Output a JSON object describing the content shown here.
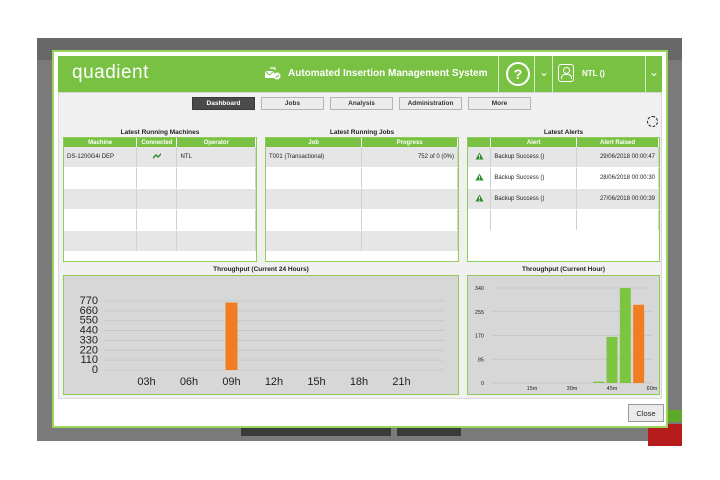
{
  "header": {
    "logo_text": "quadient",
    "system_title": "Automated Insertion Management System",
    "help_label": "?",
    "user_label": "NTL ()"
  },
  "nav": {
    "tabs": [
      {
        "label": "Dashboard",
        "active": true
      },
      {
        "label": "Jobs",
        "active": false
      },
      {
        "label": "Analysis",
        "active": false
      },
      {
        "label": "Administration",
        "active": false
      },
      {
        "label": "More",
        "active": false
      }
    ]
  },
  "machines": {
    "title": "Latest Running Machines",
    "columns": [
      "Machine",
      "Connected",
      "Operator"
    ],
    "rows": [
      {
        "machine": "DS-1200G4i DEP",
        "connected": true,
        "operator": "NTL"
      }
    ]
  },
  "jobs": {
    "title": "Latest Running Jobs",
    "columns": [
      "Job",
      "Progress"
    ],
    "rows": [
      {
        "job": "T001 (Transactional)",
        "progress": "752 of 0 (0%)"
      }
    ]
  },
  "alerts": {
    "title": "Latest Alerts",
    "columns": [
      "Alert",
      "Alert Raised"
    ],
    "rows": [
      {
        "icon": "warning-icon",
        "alert": "Backup Success ()",
        "raised": "29/06/2018 00:00:47"
      },
      {
        "icon": "warning-icon",
        "alert": "Backup Success ()",
        "raised": "28/06/2018 00:00:30"
      },
      {
        "icon": "warning-icon",
        "alert": "Backup Success ()",
        "raised": "27/06/2018 00:00:39"
      }
    ]
  },
  "footer": {
    "close_label": "Close"
  },
  "colors": {
    "brand_green": "#79c142",
    "orange": "#f07d22",
    "bar_green": "#7cc540"
  },
  "chart_data": [
    {
      "type": "bar",
      "title": "Throughput (Current 24 Hours)",
      "categories": [
        "03h",
        "06h",
        "09h",
        "12h",
        "15h",
        "18h",
        "21h"
      ],
      "y_ticks": [
        0,
        110,
        220,
        330,
        440,
        550,
        660,
        770
      ],
      "ylim": [
        0,
        770
      ],
      "series": [
        {
          "color": "#f07d22",
          "points": [
            {
              "x": 9,
              "y": 752
            }
          ]
        }
      ]
    },
    {
      "type": "bar",
      "title": "Throughput (Current Hour)",
      "categories": [
        "15m",
        "30m",
        "45m",
        "60m"
      ],
      "y_ticks": [
        0,
        85,
        170,
        255,
        340
      ],
      "ylim": [
        0,
        340
      ],
      "series": [
        {
          "color": "#7cc540",
          "points": [
            {
              "x": 40,
              "y": 5
            },
            {
              "x": 45,
              "y": 165
            },
            {
              "x": 50,
              "y": 340
            }
          ]
        },
        {
          "color": "#f07d22",
          "points": [
            {
              "x": 55,
              "y": 280
            }
          ]
        }
      ]
    }
  ]
}
